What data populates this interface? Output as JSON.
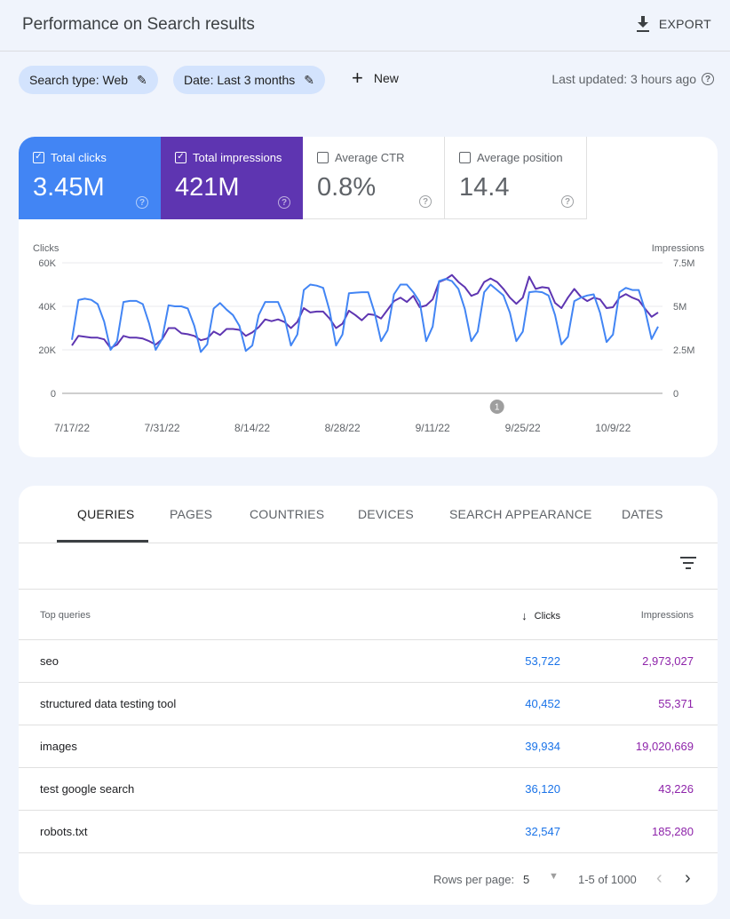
{
  "header": {
    "title": "Performance on Search results",
    "export_label": "EXPORT"
  },
  "filters": {
    "chips": [
      {
        "label": "Search type: Web"
      },
      {
        "label": "Date: Last 3 months"
      }
    ],
    "new_label": "New",
    "last_updated": "Last updated: 3 hours ago"
  },
  "metrics": [
    {
      "label": "Total clicks",
      "value": "3.45M",
      "checked": true,
      "color": "#4285f4"
    },
    {
      "label": "Total impressions",
      "value": "421M",
      "checked": true,
      "color": "#5e35b1"
    },
    {
      "label": "Average CTR",
      "value": "0.8%",
      "checked": false
    },
    {
      "label": "Average position",
      "value": "14.4",
      "checked": false
    }
  ],
  "chart_data": {
    "type": "line",
    "ylabel_left": "Clicks",
    "ylabel_right": "Impressions",
    "y_left_ticks": [
      "0",
      "20K",
      "40K",
      "60K"
    ],
    "y_left_range": [
      0,
      60000
    ],
    "y_right_ticks": [
      "0",
      "2.5M",
      "5M",
      "7.5M"
    ],
    "y_right_range": [
      0,
      7500000
    ],
    "x_start": "2022-07-17",
    "x_tick_labels": [
      "7/17/22",
      "7/31/22",
      "8/14/22",
      "8/28/22",
      "9/11/22",
      "9/25/22",
      "10/9/22"
    ],
    "annotation": {
      "label": "1",
      "date": "2022-09-21"
    },
    "grid": true,
    "series": [
      {
        "name": "Clicks",
        "axis": "left",
        "color": "#4285f4",
        "unit": "K",
        "values": [
          24.6,
          42.9,
          43.5,
          43,
          41,
          33,
          20,
          24,
          42,
          42.5,
          42.5,
          41,
          32,
          20,
          25,
          40.5,
          40,
          40,
          39,
          31,
          19,
          22.5,
          39,
          41.5,
          38.5,
          36,
          31,
          19.5,
          22,
          36,
          42,
          42,
          42,
          35,
          22,
          27,
          47.5,
          50,
          49.5,
          48.5,
          38,
          22,
          27,
          46,
          46.3,
          46.5,
          46.5,
          37,
          24,
          29,
          45.5,
          50,
          50,
          46.5,
          42,
          24,
          30.7,
          51.6,
          52.6,
          51.6,
          48,
          38.8,
          24,
          28.4,
          46.5,
          50,
          47.5,
          45,
          37,
          24,
          28.4,
          46.5,
          46.8,
          46.5,
          45,
          36,
          22.5,
          26,
          42.4,
          44,
          45,
          45.5,
          37,
          23.6,
          27,
          46.5,
          48.5,
          47.5,
          47.5,
          38,
          25,
          30.7
        ]
      },
      {
        "name": "Impressions",
        "axis": "right",
        "color": "#5e35b1",
        "unit": "M",
        "values": [
          2.75,
          3.3,
          3.25,
          3.2,
          3.2,
          3.1,
          2.6,
          2.8,
          3.3,
          3.2,
          3.2,
          3.15,
          3.0,
          2.8,
          3.1,
          3.75,
          3.75,
          3.45,
          3.4,
          3.3,
          3.05,
          3.15,
          3.55,
          3.35,
          3.7,
          3.7,
          3.65,
          3.3,
          3.5,
          3.8,
          4.25,
          4.15,
          4.25,
          4.1,
          3.75,
          4.1,
          4.9,
          4.65,
          4.7,
          4.7,
          4.3,
          3.75,
          4.0,
          4.75,
          4.5,
          4.2,
          4.55,
          4.5,
          4.3,
          4.8,
          5.3,
          5.5,
          5.25,
          5.6,
          4.95,
          5.05,
          5.4,
          6.4,
          6.55,
          6.8,
          6.4,
          6.1,
          5.6,
          5.75,
          6.4,
          6.6,
          6.4,
          6.0,
          5.5,
          5.15,
          5.5,
          6.7,
          6.0,
          6.1,
          6.05,
          5.2,
          4.9,
          5.5,
          6.0,
          5.55,
          5.3,
          5.5,
          5.4,
          4.9,
          4.95,
          5.5,
          5.7,
          5.5,
          5.35,
          4.85,
          4.4,
          4.65
        ]
      }
    ]
  },
  "tabs": [
    {
      "label": "QUERIES",
      "active": true
    },
    {
      "label": "PAGES"
    },
    {
      "label": "COUNTRIES"
    },
    {
      "label": "DEVICES"
    },
    {
      "label": "SEARCH APPEARANCE"
    },
    {
      "label": "DATES"
    }
  ],
  "table": {
    "headers": {
      "query": "Top queries",
      "clicks": "Clicks",
      "impressions": "Impressions"
    },
    "sort": {
      "column": "clicks",
      "direction": "desc"
    },
    "rows": [
      {
        "query": "seo",
        "clicks": "53,722",
        "impressions": "2,973,027"
      },
      {
        "query": "structured data testing tool",
        "clicks": "40,452",
        "impressions": "55,371"
      },
      {
        "query": "images",
        "clicks": "39,934",
        "impressions": "19,020,669"
      },
      {
        "query": "test google search",
        "clicks": "36,120",
        "impressions": "43,226"
      },
      {
        "query": "robots.txt",
        "clicks": "32,547",
        "impressions": "185,280"
      }
    ]
  },
  "pagination": {
    "rows_per_page_label": "Rows per page:",
    "rows_per_page": "5",
    "range": "1-5 of 1000"
  }
}
